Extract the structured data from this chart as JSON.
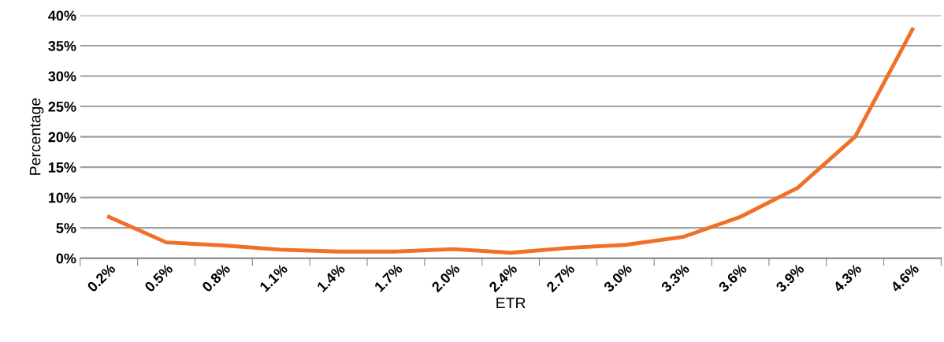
{
  "chart_data": {
    "type": "line",
    "xlabel": "ETR",
    "ylabel": "Percentage",
    "categories": [
      "0.2%",
      "0.5%",
      "0.8%",
      "1.1%",
      "1.4%",
      "1.7%",
      "2.0%",
      "2.4%",
      "2.7%",
      "3.0%",
      "3.3%",
      "3.6%",
      "3.9%",
      "4.3%",
      "4.6%"
    ],
    "series": [
      {
        "color": "#f07028",
        "values": [
          6.8,
          2.6,
          2.1,
          1.4,
          1.1,
          1.1,
          1.5,
          0.9,
          1.7,
          2.2,
          3.5,
          6.8,
          11.6,
          20.0,
          37.7
        ]
      }
    ],
    "ylim": [
      0,
      40
    ],
    "yticks": [
      {
        "value": 0,
        "label": "0%"
      },
      {
        "value": 5,
        "label": "5%"
      },
      {
        "value": 10,
        "label": "10%"
      },
      {
        "value": 15,
        "label": "15%"
      },
      {
        "value": 20,
        "label": "20%"
      },
      {
        "value": 25,
        "label": "25%"
      },
      {
        "value": 30,
        "label": "30%"
      },
      {
        "value": 35,
        "label": "35%"
      },
      {
        "value": 40,
        "label": "40%"
      }
    ],
    "grid": "y",
    "legend": false,
    "marker": "none",
    "line_style": "solid"
  }
}
